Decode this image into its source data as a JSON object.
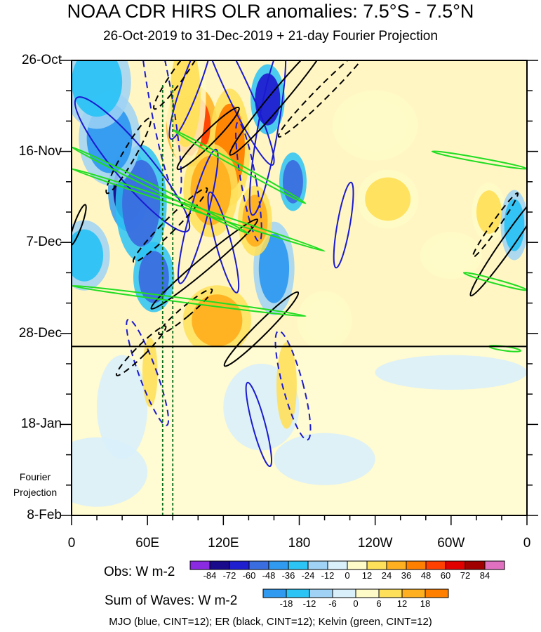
{
  "chart_data": {
    "type": "heatmap",
    "title": "NOAA CDR HIRS OLR anomalies: 7.5°S - 7.5°N",
    "subtitle": "26-Oct-2019 to 31-Dec-2019 + 21-day Fourier Projection",
    "y_tick_labels": [
      "26-Oct",
      "16-Nov",
      "7-Dec",
      "28-Dec",
      "18-Jan",
      "8-Feb"
    ],
    "x_tick_labels": [
      "0",
      "60E",
      "120E",
      "180",
      "120W",
      "60W",
      "0"
    ],
    "x_range_deg": [
      0,
      360
    ],
    "time_range_days": [
      0,
      105
    ],
    "observation_end_day": 66,
    "projection_label_line1": "Fourier",
    "projection_label_line2": "Projection",
    "obs_legend": {
      "title": "Obs: W m-2",
      "levels": [
        "-84",
        "-72",
        "-60",
        "-48",
        "-36",
        "-24",
        "-12",
        "0",
        "12",
        "24",
        "36",
        "48",
        "60",
        "72",
        "84"
      ],
      "colors": [
        "#8a2be2",
        "#1a0a8c",
        "#1f1fd0",
        "#3a6ee0",
        "#2f9af0",
        "#2cc3f5",
        "#9fd2f5",
        "#d9f0fb",
        "#fffbc8",
        "#ffe05a",
        "#ffb020",
        "#ff8000",
        "#ff4000",
        "#e00000",
        "#a00000",
        "#e070c0"
      ]
    },
    "waves_legend": {
      "title": "Sum of Waves: W m-2",
      "levels": [
        "-18",
        "-12",
        "-6",
        "0",
        "6",
        "12",
        "18"
      ],
      "colors": [
        "#2f9af0",
        "#2cc3f5",
        "#9fd2f5",
        "#d9f0fb",
        "#fffbc8",
        "#ffe05a",
        "#ffb020",
        "#ff8000"
      ]
    },
    "footer": "MJO (blue, CINT=12); ER (black, CINT=12); Kelvin (green, CINT=12)",
    "reference_lines_deg": [
      72,
      80
    ],
    "mjo_contours": [
      {
        "lon": 70,
        "day": 8,
        "rx": 9,
        "ry": 24,
        "rot": -10,
        "dash": true
      },
      {
        "lon": 95,
        "day": 5,
        "rx": 7,
        "ry": 14,
        "rot": 20,
        "dash": false
      },
      {
        "lon": 130,
        "day": 6,
        "rx": 9,
        "ry": 20,
        "rot": -25,
        "dash": false
      },
      {
        "lon": 155,
        "day": 16,
        "rx": 8,
        "ry": 20,
        "rot": 10,
        "dash": false
      },
      {
        "lon": 48,
        "day": 24,
        "rx": 14,
        "ry": 20,
        "rot": -40,
        "dash": false
      },
      {
        "lon": 100,
        "day": 36,
        "rx": 7,
        "ry": 16,
        "rot": 15,
        "dash": false
      },
      {
        "lon": 120,
        "day": 42,
        "rx": 6,
        "ry": 12,
        "rot": -15,
        "dash": false
      },
      {
        "lon": 140,
        "day": 28,
        "rx": 6,
        "ry": 14,
        "rot": -10,
        "dash": true
      },
      {
        "lon": 60,
        "day": 72,
        "rx": 7,
        "ry": 13,
        "rot": -20,
        "dash": true
      },
      {
        "lon": 175,
        "day": 75,
        "rx": 8,
        "ry": 13,
        "rot": -15,
        "dash": true
      },
      {
        "lon": 148,
        "day": 84,
        "rx": 5,
        "ry": 10,
        "rot": -15,
        "dash": false
      },
      {
        "lon": 215,
        "day": 38,
        "rx": 5,
        "ry": 10,
        "rot": 10,
        "dash": false
      }
    ],
    "er_contours": [
      {
        "lon": 85,
        "day": 3,
        "rx": 5,
        "ry": 10,
        "rot": 35,
        "dash": true
      },
      {
        "lon": 165,
        "day": 8,
        "rx": 6,
        "ry": 18,
        "rot": 40,
        "dash": false
      },
      {
        "lon": 200,
        "day": 7,
        "rx": 5,
        "ry": 15,
        "rot": 45,
        "dash": true
      },
      {
        "lon": 45,
        "day": 22,
        "rx": 5,
        "ry": 10,
        "rot": 30,
        "dash": true
      },
      {
        "lon": 108,
        "day": 18,
        "rx": 5,
        "ry": 10,
        "rot": 45,
        "dash": false
      },
      {
        "lon": 78,
        "day": 38,
        "rx": 5,
        "ry": 12,
        "rot": 45,
        "dash": true
      },
      {
        "lon": 105,
        "day": 47,
        "rx": 5,
        "ry": 16,
        "rot": 50,
        "dash": false
      },
      {
        "lon": 90,
        "day": 58,
        "rx": 4,
        "ry": 8,
        "rot": 50,
        "dash": true
      },
      {
        "lon": 150,
        "day": 62,
        "rx": 5,
        "ry": 12,
        "rot": 45,
        "dash": false
      },
      {
        "lon": 55,
        "day": 67,
        "rx": 4,
        "ry": 8,
        "rot": 45,
        "dash": true
      },
      {
        "lon": 345,
        "day": 42,
        "rx": 5,
        "ry": 15,
        "rot": 35,
        "dash": false
      },
      {
        "lon": 335,
        "day": 38,
        "rx": 3,
        "ry": 9,
        "rot": 35,
        "dash": true
      },
      {
        "lon": 5,
        "day": 38,
        "rx": 3,
        "ry": 5,
        "rot": 20,
        "dash": false
      }
    ],
    "kelvin_tracks": [
      {
        "lon1": 0,
        "day1": 20,
        "lon2": 140,
        "day2": 40
      },
      {
        "lon1": 0,
        "day1": 25,
        "lon2": 200,
        "day2": 44
      },
      {
        "lon1": 80,
        "day1": 16,
        "lon2": 185,
        "day2": 33
      },
      {
        "lon1": 0,
        "day1": 52,
        "lon2": 185,
        "day2": 59
      },
      {
        "lon1": 285,
        "day1": 21,
        "lon2": 360,
        "day2": 25
      },
      {
        "lon1": 310,
        "day1": 49,
        "lon2": 360,
        "day2": 53
      },
      {
        "lon1": 330,
        "day1": 66,
        "lon2": 355,
        "day2": 67
      }
    ],
    "obs_blobs": [
      {
        "lon": 45,
        "day": 30,
        "rx": 12,
        "ry": 7,
        "v": -72
      },
      {
        "lon": 55,
        "day": 33,
        "rx": 15,
        "ry": 10,
        "v": -48
      },
      {
        "lon": 30,
        "day": 18,
        "rx": 18,
        "ry": 8,
        "v": -36
      },
      {
        "lon": 155,
        "day": 9,
        "rx": 10,
        "ry": 6,
        "v": -60
      },
      {
        "lon": 175,
        "day": 28,
        "rx": 8,
        "ry": 5,
        "v": -48
      },
      {
        "lon": 160,
        "day": 48,
        "rx": 12,
        "ry": 8,
        "v": -36
      },
      {
        "lon": 65,
        "day": 50,
        "rx": 12,
        "ry": 6,
        "v": -48
      },
      {
        "lon": 20,
        "day": 5,
        "rx": 20,
        "ry": 8,
        "v": -24
      },
      {
        "lon": 10,
        "day": 45,
        "rx": 15,
        "ry": 6,
        "v": -24
      },
      {
        "lon": 95,
        "day": 15,
        "rx": 15,
        "ry": 7,
        "v": 60
      },
      {
        "lon": 125,
        "day": 20,
        "rx": 12,
        "ry": 10,
        "v": 48
      },
      {
        "lon": 110,
        "day": 30,
        "rx": 16,
        "ry": 8,
        "v": 36
      },
      {
        "lon": 145,
        "day": 37,
        "rx": 10,
        "ry": 6,
        "v": 36
      },
      {
        "lon": 90,
        "day": 8,
        "rx": 12,
        "ry": 12,
        "v": 24
      },
      {
        "lon": 115,
        "day": 60,
        "rx": 20,
        "ry": 6,
        "v": 36
      },
      {
        "lon": 250,
        "day": 32,
        "rx": 18,
        "ry": 5,
        "v": 24
      },
      {
        "lon": 330,
        "day": 35,
        "rx": 10,
        "ry": 5,
        "v": 24
      },
      {
        "lon": 300,
        "day": 45,
        "rx": 18,
        "ry": 4,
        "v": 12
      },
      {
        "lon": 200,
        "day": 60,
        "rx": 16,
        "ry": 5,
        "v": 12
      },
      {
        "lon": 240,
        "day": 15,
        "rx": 25,
        "ry": 6,
        "v": 12
      },
      {
        "lon": 350,
        "day": 38,
        "rx": 8,
        "ry": 6,
        "v": -24
      }
    ]
  }
}
